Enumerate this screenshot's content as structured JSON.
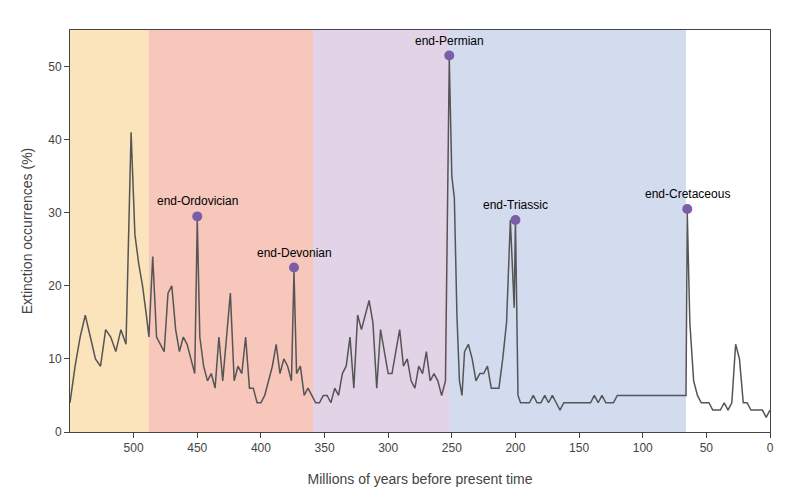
{
  "chart_data": {
    "type": "line",
    "xlabel": "Millions of years before present time",
    "ylabel": "Extinction occurrences (%)",
    "xlim": [
      550,
      0
    ],
    "ylim": [
      0,
      55
    ],
    "xticks": [
      500,
      450,
      400,
      350,
      300,
      250,
      200,
      150,
      100,
      50,
      0
    ],
    "yticks": [
      0,
      10,
      20,
      30,
      40,
      50
    ],
    "grid": false,
    "color": "#555555",
    "shaded_regions": [
      {
        "xmin": 550,
        "xmax": 488,
        "color": "#f8c878"
      },
      {
        "xmin": 488,
        "xmax": 359,
        "color": "#f0907a"
      },
      {
        "xmin": 359,
        "xmax": 252,
        "color": "#c8a8d0"
      },
      {
        "xmin": 252,
        "xmax": 66,
        "color": "#a8b8e0"
      }
    ],
    "annotations": [
      {
        "label": "end-Ordovician",
        "x": 450,
        "y": 29.5,
        "color": "#7B5EA7"
      },
      {
        "label": "end-Devonian",
        "x": 374,
        "y": 22.5,
        "color": "#7B5EA7"
      },
      {
        "label": "end-Permian",
        "x": 252,
        "y": 51.5,
        "color": "#7B5EA7"
      },
      {
        "label": "end-Triassic",
        "x": 200,
        "y": 29.0,
        "color": "#7B5EA7"
      },
      {
        "label": "end-Cretaceous",
        "x": 65,
        "y": 30.5,
        "color": "#7B5EA7"
      }
    ],
    "x": [
      550,
      546,
      542,
      538,
      534,
      530,
      526,
      522,
      518,
      514,
      510,
      506,
      502,
      499,
      496,
      493,
      490,
      488,
      485,
      482,
      479,
      476,
      473,
      470,
      467,
      464,
      461,
      458,
      455,
      452,
      450,
      448,
      445,
      442,
      439,
      436,
      433,
      430,
      427,
      424,
      421,
      418,
      415,
      412,
      409,
      406,
      403,
      400,
      397,
      394,
      391,
      388,
      385,
      382,
      379,
      376,
      374,
      372,
      369,
      366,
      363,
      360,
      357,
      354,
      351,
      348,
      345,
      342,
      339,
      336,
      333,
      330,
      327,
      324,
      321,
      318,
      315,
      312,
      309,
      306,
      303,
      300,
      297,
      294,
      291,
      288,
      285,
      282,
      279,
      276,
      273,
      270,
      267,
      264,
      261,
      258,
      255,
      252,
      250,
      248,
      246,
      244,
      242,
      240,
      237,
      234,
      231,
      228,
      225,
      222,
      219,
      216,
      213,
      210,
      207,
      204,
      201,
      200,
      198,
      196,
      194,
      192,
      189,
      186,
      183,
      180,
      177,
      174,
      171,
      168,
      165,
      162,
      159,
      156,
      153,
      150,
      147,
      144,
      141,
      138,
      135,
      132,
      129,
      126,
      123,
      120,
      117,
      114,
      111,
      108,
      105,
      102,
      99,
      96,
      93,
      90,
      87,
      84,
      81,
      78,
      75,
      72,
      69,
      66,
      65,
      63,
      60,
      57,
      54,
      51,
      48,
      45,
      42,
      39,
      36,
      33,
      30,
      27,
      24,
      21,
      18,
      15,
      12,
      9,
      6,
      3,
      0
    ],
    "values": [
      4,
      9,
      13,
      16,
      13,
      10,
      9,
      14,
      13,
      11,
      14,
      12,
      41,
      27,
      23,
      20,
      16,
      13,
      24,
      13,
      12,
      11,
      19,
      20,
      14,
      11,
      13,
      12,
      10,
      8,
      29,
      13,
      9,
      7,
      8,
      6,
      13,
      7,
      13,
      19,
      7,
      9,
      8,
      13,
      6,
      6,
      4,
      4,
      5,
      7,
      9,
      12,
      8,
      10,
      9,
      7,
      22,
      8,
      9,
      5,
      6,
      5,
      4,
      4,
      5,
      5,
      4,
      6,
      5,
      8,
      9,
      13,
      6,
      16,
      14,
      16,
      18,
      15,
      6,
      14,
      11,
      8,
      8,
      11,
      14,
      9,
      10,
      7,
      6,
      9,
      8,
      11,
      7,
      8,
      7,
      5,
      7,
      51,
      35,
      32,
      16,
      7,
      5,
      11,
      12,
      10,
      7,
      8,
      8,
      9,
      6,
      6,
      6,
      10,
      15,
      29,
      17,
      29,
      5,
      4,
      4,
      4,
      4,
      5,
      4,
      4,
      5,
      4,
      5,
      4,
      3,
      4,
      4,
      4,
      4,
      4,
      4,
      4,
      4,
      5,
      4,
      5,
      4,
      4,
      4,
      5,
      5,
      5,
      5,
      5,
      5,
      5,
      5,
      5,
      5,
      5,
      5,
      5,
      5,
      5,
      5,
      5,
      5,
      5,
      30,
      15,
      7,
      5,
      4,
      4,
      4,
      3,
      3,
      3,
      4,
      3,
      4,
      12,
      10,
      4,
      4,
      3,
      3,
      3,
      3,
      2,
      3
    ]
  }
}
